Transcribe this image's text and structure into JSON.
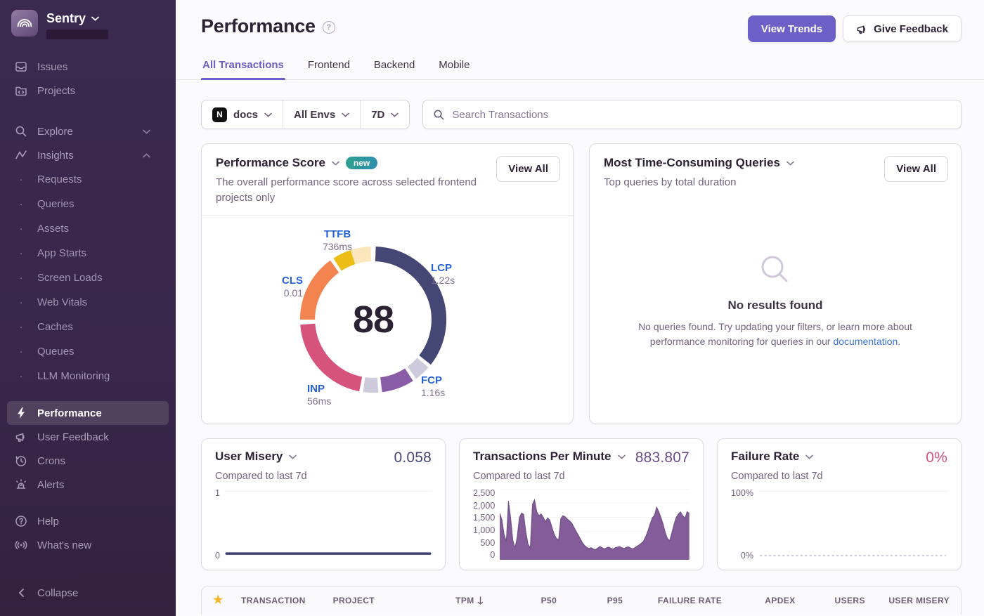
{
  "sidebar": {
    "brand": "Sentry",
    "items_top": [
      "Issues",
      "Projects"
    ],
    "groups": [
      "Explore",
      "Insights"
    ],
    "insights": [
      "Requests",
      "Queries",
      "Assets",
      "App Starts",
      "Screen Loads",
      "Web Vitals",
      "Caches",
      "Queues",
      "LLM Monitoring"
    ],
    "tools": [
      "Performance",
      "User Feedback",
      "Crons",
      "Alerts"
    ],
    "support": [
      "Help",
      "What's new"
    ],
    "collapse": "Collapse"
  },
  "header": {
    "title": "Performance",
    "view_trends": "View Trends",
    "give_feedback": "Give Feedback"
  },
  "tabs": {
    "items": [
      "All Transactions",
      "Frontend",
      "Backend",
      "Mobile"
    ],
    "active": "All Transactions"
  },
  "filters": {
    "project": "docs",
    "project_icon": "N",
    "environment": "All Envs",
    "date_range": "7D",
    "search_placeholder": "Search Transactions"
  },
  "cards": {
    "score": {
      "title": "Performance Score",
      "badge": "new",
      "description": "The overall performance score across selected frontend projects only",
      "view_all": "View All",
      "score": "88",
      "vitals": {
        "ttfb": {
          "label": "TTFB",
          "value": "736ms"
        },
        "lcp": {
          "label": "LCP",
          "value": "1.22s"
        },
        "cls": {
          "label": "CLS",
          "value": "0.01"
        },
        "inp": {
          "label": "INP",
          "value": "56ms"
        },
        "fcp": {
          "label": "FCP",
          "value": "1.16s"
        }
      }
    },
    "queries": {
      "title": "Most Time-Consuming Queries",
      "subtitle": "Top queries by total duration",
      "view_all": "View All",
      "empty_title": "No results found",
      "empty_before": "No queries found. Try updating your filters, or learn more about performance monitoring for queries in our ",
      "empty_link": "documentation",
      "empty_after": "."
    },
    "user_misery": {
      "title": "User Misery",
      "subtitle": "Compared to last 7d",
      "value": "0.058",
      "value_color": "#444674",
      "y_ticks": [
        "1",
        "0"
      ]
    },
    "tpm": {
      "title": "Transactions Per Minute",
      "subtitle": "Compared to last 7d",
      "value": "883.807",
      "value_color": "#6A4D87",
      "y_ticks": [
        "2,500",
        "2,000",
        "1,500",
        "1,000",
        "500",
        "0"
      ]
    },
    "failure_rate": {
      "title": "Failure Rate",
      "subtitle": "Compared to last 7d",
      "value": "0%",
      "value_color": "#D5537D",
      "y_ticks": [
        "100%",
        "0%"
      ]
    }
  },
  "table": {
    "columns": [
      "TRANSACTION",
      "PROJECT",
      "TPM",
      "P50",
      "P95",
      "FAILURE RATE",
      "APDEX",
      "USERS",
      "USER MISERY"
    ],
    "sorted_by": "TPM",
    "sort_direction": "desc"
  },
  "chart_data": [
    {
      "type": "pie",
      "title": "Performance Score",
      "center_score": 88,
      "angle_unit": "degrees clockwise from 12 o'clock",
      "segments": [
        {
          "name": "LCP",
          "value_label": "1.22s",
          "start": 2,
          "end": 128,
          "color": "#444674"
        },
        {
          "name": "LCP-unscored",
          "start": 131,
          "end": 144,
          "color": "#CDCBDB"
        },
        {
          "name": "FCP",
          "value_label": "1.16s",
          "start": 147,
          "end": 173,
          "color": "#8A5BA6"
        },
        {
          "name": "FCP-unscored",
          "start": 176,
          "end": 188,
          "color": "#CDCBDB"
        },
        {
          "name": "INP",
          "value_label": "56ms",
          "start": 191,
          "end": 266,
          "color": "#D5537D"
        },
        {
          "name": "CLS",
          "value_label": "0.01",
          "start": 270,
          "end": 324,
          "color": "#F3834F"
        },
        {
          "name": "TTFB",
          "value_label": "736ms",
          "start": 327,
          "end": 342,
          "color": "#EDBD17"
        },
        {
          "name": "TTFB-unscored",
          "start": 342,
          "end": 358,
          "color": "#FBE7BB"
        }
      ]
    },
    {
      "type": "area",
      "title": "Transactions Per Minute",
      "subtitle": "Compared to last 7d",
      "current_value": 883.807,
      "ylim": [
        0,
        2500
      ],
      "y_ticks": [
        0,
        500,
        1000,
        1500,
        2000,
        2500
      ],
      "x_range": "last 7 days",
      "color": "#7D5395",
      "values": [
        1650,
        1420,
        900,
        650,
        2080,
        1500,
        700,
        420,
        800,
        1480,
        1650,
        1600,
        980,
        560,
        420,
        1950,
        2120,
        1700,
        1560,
        1620,
        1500,
        1350,
        1480,
        1400,
        1150,
        900,
        760,
        700,
        1450,
        1560,
        1520,
        1440,
        1380,
        1300,
        1160,
        1020,
        880,
        740,
        600,
        500,
        440,
        400,
        430,
        380,
        360,
        420,
        470,
        430,
        390,
        420,
        450,
        410,
        380,
        430,
        450,
        470,
        430,
        400,
        440,
        460,
        420,
        390,
        430,
        480,
        530,
        590,
        660,
        820,
        1020,
        1260,
        1480,
        1570,
        1860,
        1700,
        1490,
        1260,
        960,
        750,
        680,
        960,
        1260,
        1500,
        1620,
        1690,
        1560,
        1470,
        1700,
        1640
      ]
    },
    {
      "type": "line",
      "title": "User Misery",
      "subtitle": "Compared to last 7d",
      "current_value": 0.058,
      "ylim": [
        0,
        1
      ],
      "y_ticks": [
        0,
        1
      ],
      "color": "#3E4073",
      "values": [
        0.058,
        0.058,
        0.058,
        0.058,
        0.058,
        0.058,
        0.058,
        0.058,
        0.058,
        0.058,
        0.058,
        0.058
      ]
    },
    {
      "type": "line",
      "title": "Failure Rate",
      "subtitle": "Compared to last 7d",
      "current_value": 0,
      "ylim": [
        0,
        100
      ],
      "y_ticks": [
        0,
        100
      ],
      "color": "#C9C0D1",
      "style": "dashed",
      "values": [
        0,
        0,
        0,
        0,
        0,
        0,
        0,
        0,
        0,
        0,
        0,
        0
      ]
    }
  ]
}
